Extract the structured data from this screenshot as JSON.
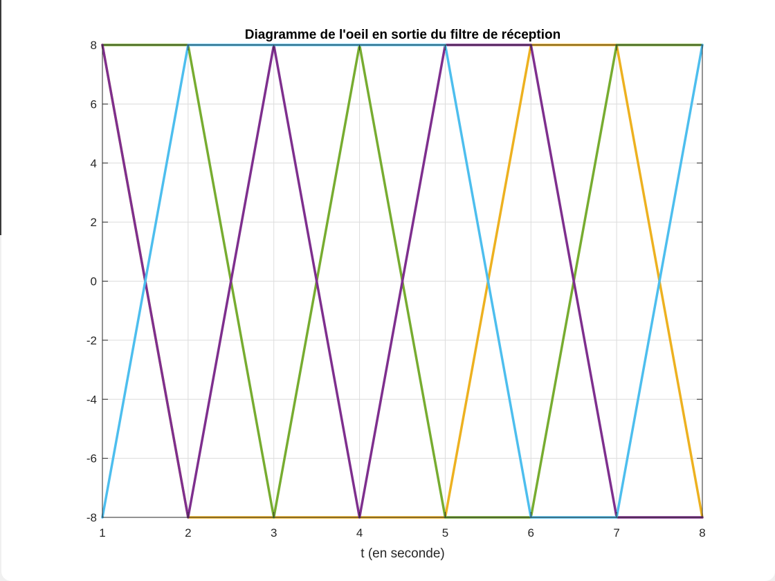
{
  "chart_data": {
    "type": "line",
    "title": "Diagramme de l'oeil en sortie du filtre de réception",
    "xlabel": "t (en seconde)",
    "ylabel": "",
    "xlim": [
      1,
      8
    ],
    "ylim": [
      -8,
      8
    ],
    "xticks": [
      1,
      2,
      3,
      4,
      5,
      6,
      7,
      8
    ],
    "yticks": [
      -8,
      -6,
      -4,
      -2,
      0,
      2,
      4,
      6,
      8
    ],
    "xtick_labels": [
      "1",
      "2",
      "3",
      "4",
      "5",
      "6",
      "7",
      "8"
    ],
    "ytick_labels": [
      "-8",
      "-6",
      "-4",
      "-2",
      "0",
      "2",
      "4",
      "6",
      "8"
    ],
    "grid": true,
    "series": [
      {
        "color": "#EDB120",
        "x": [
          1,
          2,
          3,
          4,
          5,
          6,
          7,
          8
        ],
        "y": [
          8,
          -8,
          -8,
          -8,
          -8,
          8,
          8,
          -8
        ]
      },
      {
        "color": "#77AC30",
        "x": [
          1,
          2,
          3,
          4,
          5,
          6,
          7,
          8
        ],
        "y": [
          8,
          8,
          -8,
          8,
          -8,
          -8,
          8,
          8
        ]
      },
      {
        "color": "#7E2F8E",
        "x": [
          1,
          2,
          3,
          4,
          5,
          6,
          7,
          8
        ],
        "y": [
          8,
          -8,
          8,
          -8,
          8,
          8,
          -8,
          -8
        ]
      },
      {
        "color": "#4DBEEE",
        "x": [
          1,
          2,
          3,
          4,
          5,
          6,
          7,
          8
        ],
        "y": [
          -8,
          8,
          8,
          8,
          8,
          -8,
          -8,
          8
        ]
      }
    ]
  }
}
